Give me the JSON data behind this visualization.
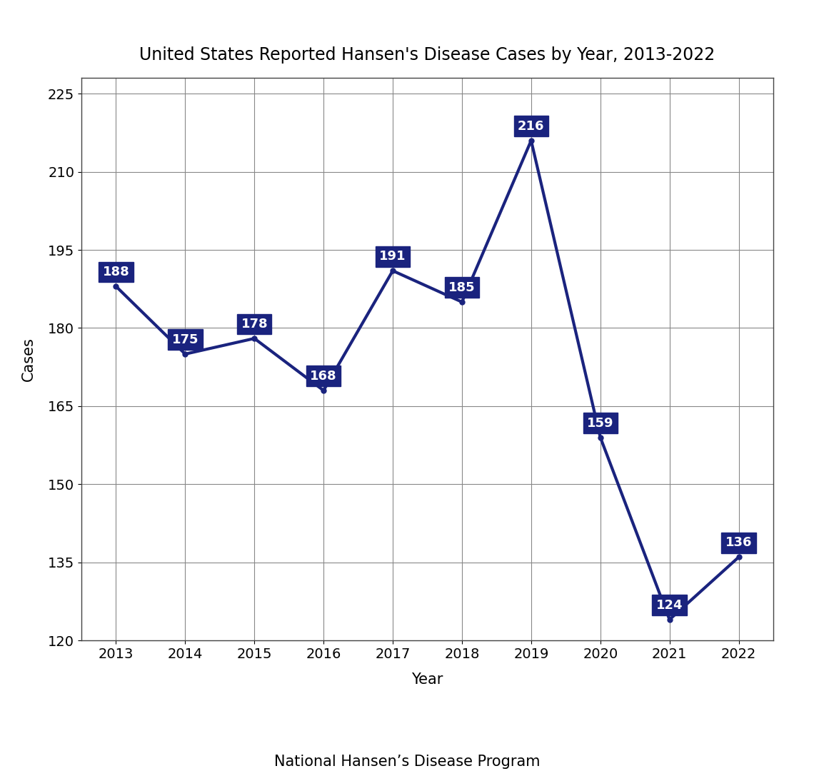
{
  "title": "United States Reported Hansen's Disease Cases by Year, 2013-2022",
  "xlabel": "Year",
  "ylabel": "Cases",
  "source": "National Hansen’s Disease Program",
  "years": [
    2013,
    2014,
    2015,
    2016,
    2017,
    2018,
    2019,
    2020,
    2021,
    2022
  ],
  "cases": [
    188,
    175,
    178,
    168,
    191,
    185,
    216,
    159,
    124,
    136
  ],
  "line_color": "#1a237e",
  "label_bg_color": "#1a237e",
  "label_text_color": "#ffffff",
  "background_color": "#ffffff",
  "grid_color": "#888888",
  "ylim": [
    120,
    228
  ],
  "yticks": [
    120,
    135,
    150,
    165,
    180,
    195,
    210,
    225
  ],
  "title_fontsize": 17,
  "axis_label_fontsize": 15,
  "tick_fontsize": 14,
  "source_fontsize": 15,
  "data_label_fontsize": 13,
  "line_width": 3.0,
  "marker_size": 5
}
